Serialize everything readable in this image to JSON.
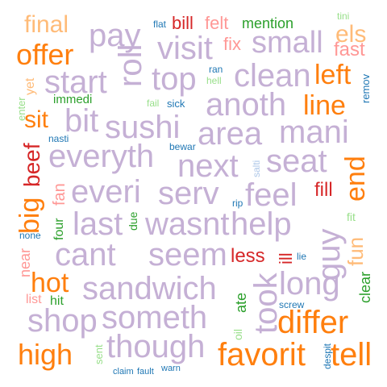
{
  "palette": {
    "lavender": "#C5B0D5",
    "orange": "#FF7F0E",
    "light_orange": "#FFBB78",
    "red": "#D62728",
    "salmon": "#FF9896",
    "green": "#2CA02C",
    "light_green": "#98DF8A",
    "blue": "#1F77B4",
    "light_blue": "#AEC7E8"
  },
  "words": [
    {
      "text": "pay",
      "color": "lavender"
    },
    {
      "text": "final",
      "color": "light_orange"
    },
    {
      "text": "bill",
      "color": "red"
    },
    {
      "text": "felt",
      "color": "salmon"
    },
    {
      "text": "mention",
      "color": "green"
    },
    {
      "text": "els",
      "color": "light_orange"
    },
    {
      "text": "offer",
      "color": "orange"
    },
    {
      "text": "visit",
      "color": "lavender"
    },
    {
      "text": "fix",
      "color": "salmon"
    },
    {
      "text": "small",
      "color": "lavender"
    },
    {
      "text": "fast",
      "color": "salmon"
    },
    {
      "text": "start",
      "color": "lavender"
    },
    {
      "text": "roll",
      "color": "lavender"
    },
    {
      "text": "top",
      "color": "lavender"
    },
    {
      "text": "clean",
      "color": "lavender"
    },
    {
      "text": "left",
      "color": "orange"
    },
    {
      "text": "immedi",
      "color": "green"
    },
    {
      "text": "anoth",
      "color": "lavender"
    },
    {
      "text": "line",
      "color": "orange"
    },
    {
      "text": "sit",
      "color": "orange"
    },
    {
      "text": "bit",
      "color": "lavender"
    },
    {
      "text": "sushi",
      "color": "lavender"
    },
    {
      "text": "area",
      "color": "lavender"
    },
    {
      "text": "mani",
      "color": "lavender"
    },
    {
      "text": "beef",
      "color": "red"
    },
    {
      "text": "everyth",
      "color": "lavender"
    },
    {
      "text": "next",
      "color": "lavender"
    },
    {
      "text": "seat",
      "color": "lavender"
    },
    {
      "text": "end",
      "color": "orange"
    },
    {
      "text": "big",
      "color": "orange"
    },
    {
      "text": "fan",
      "color": "salmon"
    },
    {
      "text": "everi",
      "color": "lavender"
    },
    {
      "text": "serv",
      "color": "lavender"
    },
    {
      "text": "feel",
      "color": "lavender"
    },
    {
      "text": "fill",
      "color": "red"
    },
    {
      "text": "last",
      "color": "lavender"
    },
    {
      "text": "wasnt",
      "color": "lavender"
    },
    {
      "text": "help",
      "color": "lavender"
    },
    {
      "text": "guy",
      "color": "lavender"
    },
    {
      "text": "four",
      "color": "green"
    },
    {
      "text": "due",
      "color": "green"
    },
    {
      "text": "fun",
      "color": "light_orange"
    },
    {
      "text": "cant",
      "color": "lavender"
    },
    {
      "text": "seem",
      "color": "lavender"
    },
    {
      "text": "less",
      "color": "red"
    },
    {
      "text": "ill",
      "color": "red"
    },
    {
      "text": "took",
      "color": "lavender"
    },
    {
      "text": "near",
      "color": "salmon"
    },
    {
      "text": "hot",
      "color": "orange"
    },
    {
      "text": "sandwich",
      "color": "lavender"
    },
    {
      "text": "long",
      "color": "lavender"
    },
    {
      "text": "clear",
      "color": "green"
    },
    {
      "text": "list",
      "color": "salmon"
    },
    {
      "text": "hit",
      "color": "green"
    },
    {
      "text": "shop",
      "color": "lavender"
    },
    {
      "text": "someth",
      "color": "lavender"
    },
    {
      "text": "ate",
      "color": "green"
    },
    {
      "text": "differ",
      "color": "orange"
    },
    {
      "text": "high",
      "color": "orange"
    },
    {
      "text": "though",
      "color": "lavender"
    },
    {
      "text": "favorit",
      "color": "orange"
    },
    {
      "text": "tell",
      "color": "orange"
    },
    {
      "text": "flat",
      "color": "blue"
    },
    {
      "text": "tini",
      "color": "light_green"
    },
    {
      "text": "ran",
      "color": "blue"
    },
    {
      "text": "hell",
      "color": "light_green"
    },
    {
      "text": "yet",
      "color": "light_orange"
    },
    {
      "text": "remov",
      "color": "blue"
    },
    {
      "text": "enter",
      "color": "light_green"
    },
    {
      "text": "fail",
      "color": "light_green"
    },
    {
      "text": "sick",
      "color": "blue"
    },
    {
      "text": "nasti",
      "color": "blue"
    },
    {
      "text": "bewar",
      "color": "blue"
    },
    {
      "text": "salti",
      "color": "light_blue"
    },
    {
      "text": "rip",
      "color": "blue"
    },
    {
      "text": "fit",
      "color": "light_green"
    },
    {
      "text": "none",
      "color": "blue"
    },
    {
      "text": "lie",
      "color": "blue"
    },
    {
      "text": "oil",
      "color": "light_green"
    },
    {
      "text": "screw",
      "color": "blue"
    },
    {
      "text": "sent",
      "color": "light_green"
    },
    {
      "text": "despit",
      "color": "blue"
    },
    {
      "text": "claim",
      "color": "blue"
    },
    {
      "text": "fault",
      "color": "blue"
    },
    {
      "text": "warn",
      "color": "blue"
    }
  ]
}
